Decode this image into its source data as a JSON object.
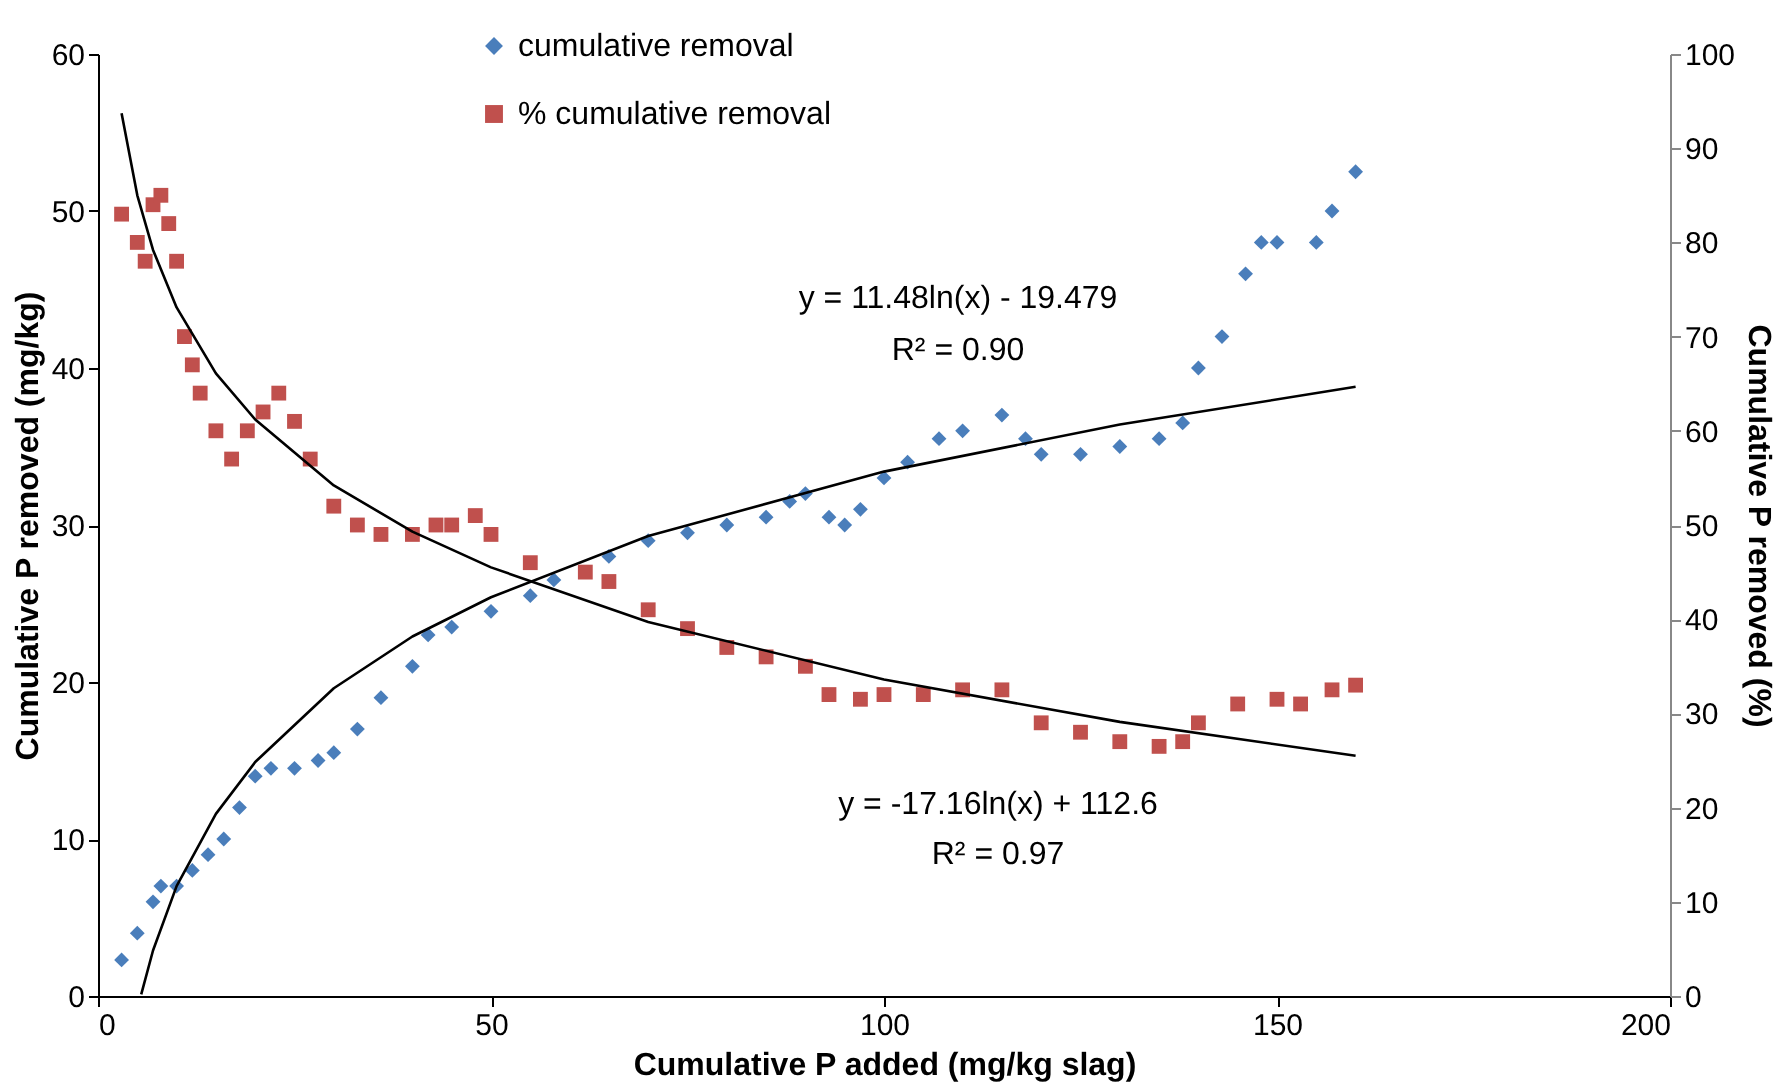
{
  "chart_data": {
    "type": "scatter",
    "xlabel": "Cumulative P added (mg/kg slag)",
    "ylabel": "Cumulative P removed (mg/kg)",
    "y2label": "Cumulative P removed (%)",
    "xlim": [
      0,
      200
    ],
    "xticks": [
      0,
      50,
      100,
      150,
      200
    ],
    "ylim": [
      0,
      60
    ],
    "yticks": [
      0,
      10,
      20,
      30,
      40,
      50,
      60
    ],
    "y2lim": [
      0,
      100
    ],
    "y2ticks": [
      0,
      10,
      20,
      30,
      40,
      50,
      60,
      70,
      80,
      90,
      100
    ],
    "grid": false,
    "legend": "top left",
    "series": [
      {
        "name": "cumulative removal",
        "marker": "diamond",
        "axis": "y",
        "color": "#4a7ebb",
        "x": [
          3,
          5,
          7,
          8,
          10,
          12,
          14,
          16,
          18,
          20,
          22,
          25,
          28,
          30,
          33,
          36,
          40,
          42,
          45,
          50,
          55,
          58,
          65,
          70,
          75,
          80,
          85,
          88,
          90,
          93,
          95,
          97,
          100,
          103,
          107,
          110,
          115,
          118,
          120,
          125,
          130,
          135,
          138,
          140,
          143,
          146,
          148,
          150,
          155,
          157,
          160
        ],
        "values": [
          2.3,
          4,
          6,
          7,
          7,
          8,
          9,
          10,
          12,
          14,
          14.5,
          14.5,
          15,
          15.5,
          17,
          19,
          21,
          23,
          23.5,
          24.5,
          25.5,
          26.5,
          28,
          29,
          29.5,
          30,
          30.5,
          31.5,
          32,
          30.5,
          30,
          31,
          33,
          34,
          35.5,
          36,
          37,
          35.5,
          34.5,
          34.5,
          35,
          35.5,
          36.5,
          40,
          42,
          46,
          48,
          48,
          48,
          50,
          52.5
        ]
      },
      {
        "name": "% cumulative removal",
        "marker": "square",
        "axis": "y2",
        "color": "#c0504d",
        "x": [
          3,
          5,
          6,
          7,
          8,
          9,
          10,
          11,
          12,
          13,
          15,
          17,
          19,
          21,
          23,
          25,
          27,
          30,
          33,
          36,
          40,
          43,
          45,
          48,
          50,
          55,
          62,
          65,
          70,
          75,
          80,
          85,
          90,
          93,
          97,
          100,
          105,
          110,
          115,
          120,
          125,
          130,
          135,
          138,
          140,
          145,
          150,
          153,
          157,
          160
        ],
        "values": [
          83,
          80,
          78,
          84,
          85,
          82,
          78,
          70,
          67,
          64,
          60,
          57,
          60,
          62,
          64,
          61,
          57,
          52,
          50,
          49,
          49,
          50,
          50,
          51,
          49,
          46,
          45,
          44,
          41,
          39,
          37,
          36,
          35,
          32,
          31.5,
          32,
          32,
          32.5,
          32.5,
          29,
          28,
          27,
          26.5,
          27,
          29,
          31,
          31.5,
          31,
          32.5,
          33
        ]
      },
      {
        "type": "line",
        "axis": "y",
        "color": "#000000",
        "x": [
          5.5,
          7,
          10,
          15,
          20,
          30,
          40,
          50,
          70,
          100,
          130,
          160
        ],
        "values": [
          0.1,
          2.9,
          7.0,
          11.6,
          14.9,
          19.6,
          22.9,
          25.4,
          29.3,
          33.4,
          36.4,
          38.8
        ]
      },
      {
        "type": "line",
        "axis": "y2",
        "color": "#000000",
        "x": [
          3,
          5,
          7,
          10,
          15,
          20,
          30,
          40,
          50,
          70,
          100,
          130,
          160
        ],
        "values": [
          93.7,
          85.0,
          79.2,
          73.1,
          66.1,
          61.2,
          54.2,
          49.3,
          45.5,
          39.7,
          33.6,
          29.1,
          25.5
        ]
      }
    ],
    "annotations": [
      "y = 11.48ln(x) - 19.479",
      "R² = 0.90",
      "y = -17.16ln(x) + 112.6",
      "R² = 0.97"
    ]
  }
}
